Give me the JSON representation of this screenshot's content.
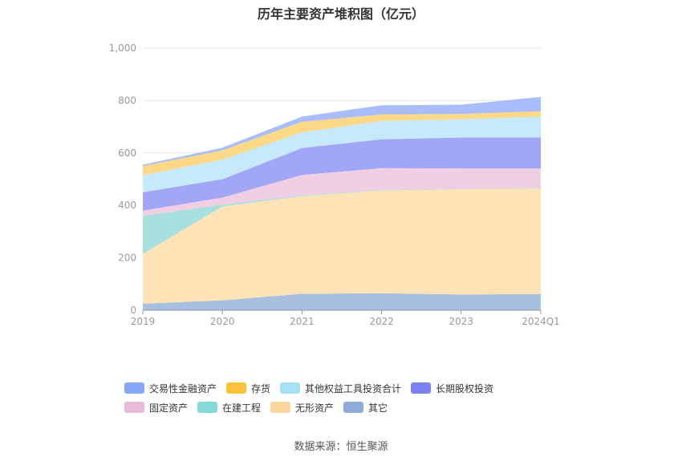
{
  "chart_data": {
    "type": "area",
    "stacked": true,
    "title": "历年主要资产堆积图（亿元）",
    "categories": [
      "2019",
      "2020",
      "2021",
      "2022",
      "2023",
      "2024Q1"
    ],
    "yticks": [
      "0",
      "200",
      "400",
      "600",
      "800",
      "1,000"
    ],
    "ylim": [
      0,
      1000
    ],
    "grid": true,
    "legend_position": "bottom",
    "series": [
      {
        "name": "其它",
        "color": "#a9bfe0",
        "values": [
          25,
          38,
          63,
          65,
          60,
          62
        ]
      },
      {
        "name": "无形资产",
        "color": "#fde3b5",
        "values": [
          190,
          358,
          372,
          392,
          402,
          402
        ]
      },
      {
        "name": "在建工程",
        "color": "#a8e0e0",
        "values": [
          145,
          7,
          3,
          2,
          2,
          2
        ]
      },
      {
        "name": "固定资产",
        "color": "#f0cfe4",
        "values": [
          20,
          27,
          78,
          83,
          77,
          75
        ]
      },
      {
        "name": "长期股权投资",
        "color": "#a1a6f7",
        "values": [
          70,
          70,
          103,
          110,
          118,
          118
        ]
      },
      {
        "name": "其他权益工具投资合计",
        "color": "#c6e9fb",
        "values": [
          65,
          75,
          60,
          70,
          70,
          80
        ]
      },
      {
        "name": "存货",
        "color": "#fdd987",
        "values": [
          35,
          35,
          40,
          25,
          20,
          20
        ]
      },
      {
        "name": "交易性金融资产",
        "color": "#a9bdfb",
        "values": [
          5,
          10,
          20,
          35,
          35,
          55
        ]
      }
    ],
    "legend_order": [
      "交易性金融资产",
      "存货",
      "其他权益工具投资合计",
      "长期股权投资",
      "固定资产",
      "在建工程",
      "无形资产",
      "其它"
    ],
    "legend_colors": {
      "交易性金融资产": "#86a8f5",
      "存货": "#fbc339",
      "其他权益工具投资合计": "#a9e0f7",
      "长期股权投资": "#7b7ff0",
      "固定资产": "#e8b9d9",
      "在建工程": "#86d8d8",
      "无形资产": "#fcd49e",
      "其它": "#8fabda"
    }
  },
  "source": "数据来源：恒生聚源"
}
